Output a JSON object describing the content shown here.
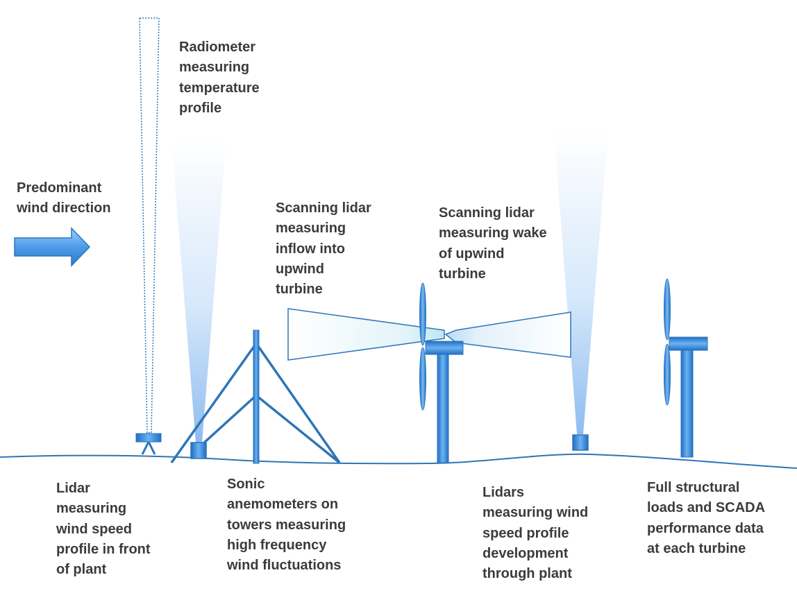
{
  "labels": {
    "wind_direction": "Predominant\nwind direction",
    "radiometer": "Radiometer\nmeasuring\ntemperature\nprofile",
    "scanning_lidar_inflow": "Scanning lidar\nmeasuring\ninflow into\nupwind\nturbine",
    "scanning_lidar_wake": "Scanning lidar\nmeasuring wake\nof  upwind\nturbine",
    "lidar_front": "Lidar\nmeasuring\nwind speed\nprofile in front\nof plant",
    "sonic_anemometers": "Sonic\nanemometers on\ntowers measuring\nhigh frequency\nwind fluctuations",
    "lidars_development": "Lidars\nmeasuring wind\nspeed profile\ndevelopment\nthrough plant",
    "structural_loads": "Full structural\nloads and SCADA\nperformance data\nat each turbine"
  },
  "icons": [
    "wind-arrow-icon",
    "radiometer-icon",
    "lidar-icon",
    "met-tower-icon",
    "wind-turbine-icon",
    "lidar-beam-icon",
    "scanning-lidar-beam-icon"
  ],
  "colors": {
    "primary_blue": "#2e75b6",
    "light_blue": "#5ba3e8",
    "beam_blue": "#9cc4f2",
    "text": "#3b3b3b"
  }
}
